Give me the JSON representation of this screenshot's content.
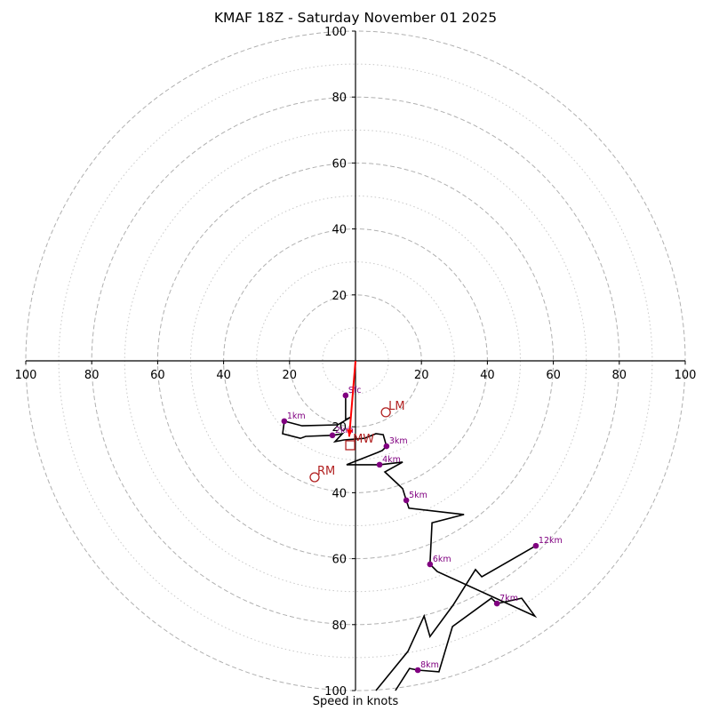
{
  "chart_data": {
    "type": "line",
    "subtype": "hodograph",
    "title": "KMAF 18Z - Saturday November 01 2025",
    "xlabel": "Speed in knots",
    "ylabel": "",
    "axis_range_kt": [
      -100,
      100
    ],
    "ring_major_kt": [
      20,
      40,
      60,
      80,
      100
    ],
    "ring_minor_kt": [
      10,
      30,
      50,
      70,
      90
    ],
    "x_tick_labels": [
      "100",
      "80",
      "60",
      "40",
      "20",
      "20",
      "40",
      "60",
      "80",
      "100"
    ],
    "x_tick_values": [
      -100,
      -80,
      -60,
      -40,
      -20,
      20,
      40,
      60,
      80,
      100
    ],
    "y_tick_labels": [
      "100",
      "80",
      "60",
      "40",
      "20",
      "20",
      "40",
      "60",
      "80",
      "100"
    ],
    "y_tick_values": [
      100,
      80,
      60,
      40,
      20,
      -20,
      -40,
      -60,
      -80,
      -100
    ],
    "grid": true,
    "colors": {
      "hodograph": "#000000",
      "height_markers": "#800080",
      "storm_motion": "#b22222",
      "mean_wind_arrow": "#ff0000",
      "ring_major": "#b0b0b0",
      "ring_minor": "#c8c8c8"
    },
    "hodograph_segments": [
      [
        [
          -3.0,
          -10.5
        ],
        [
          -3.0,
          -17.8
        ],
        [
          -1.3,
          -17.0
        ],
        [
          -5.4,
          -19.4
        ],
        [
          -16.2,
          -19.7
        ],
        [
          -21.6,
          -18.3
        ],
        [
          -22.1,
          -22.1
        ],
        [
          -16.7,
          -23.5
        ],
        [
          -15.1,
          -22.9
        ],
        [
          -7.0,
          -22.6
        ],
        [
          -4.0,
          -22.1
        ],
        [
          -6.2,
          -24.5
        ],
        [
          -3.5,
          -24.0
        ],
        [
          2.7,
          -23.5
        ],
        [
          6.2,
          -22.1
        ],
        [
          8.4,
          -22.4
        ],
        [
          9.4,
          -25.9
        ],
        [
          8.1,
          -27.2
        ],
        [
          6.7,
          -27.8
        ],
        [
          -2.7,
          -31.5
        ],
        [
          7.3,
          -31.5
        ],
        [
          14.3,
          -30.7
        ],
        [
          8.9,
          -33.7
        ],
        [
          13.5,
          -38.0
        ],
        [
          14.3,
          -38.8
        ],
        [
          15.4,
          -42.3
        ],
        [
          16.2,
          -44.7
        ],
        [
          32.9,
          -46.6
        ],
        [
          23.2,
          -49.1
        ],
        [
          22.6,
          -61.7
        ],
        [
          24.8,
          -63.9
        ],
        [
          54.4,
          -77.4
        ],
        [
          50.4,
          -72.0
        ],
        [
          42.9,
          -73.6
        ],
        [
          41.2,
          -72.0
        ],
        [
          29.4,
          -80.6
        ],
        [
          25.3,
          -94.3
        ],
        [
          18.9,
          -93.8
        ],
        [
          16.4,
          -93.3
        ],
        [
          12.1,
          -100.0
        ]
      ],
      [
        [
          6.2,
          -100.0
        ],
        [
          15.9,
          -88.1
        ],
        [
          20.8,
          -77.4
        ],
        [
          22.6,
          -83.6
        ],
        [
          29.6,
          -74.1
        ],
        [
          36.4,
          -63.3
        ],
        [
          38.3,
          -65.5
        ],
        [
          54.7,
          -56.1
        ]
      ]
    ],
    "height_markers": [
      {
        "label": "Sfc",
        "u": -3.0,
        "v": -10.5
      },
      {
        "label": "1km",
        "u": -21.6,
        "v": -18.3
      },
      {
        "label": "2km",
        "u": -7.0,
        "v": -22.6
      },
      {
        "label": "3km",
        "u": 9.4,
        "v": -25.9
      },
      {
        "label": "4km",
        "u": 7.3,
        "v": -31.5
      },
      {
        "label": "5km",
        "u": 15.4,
        "v": -42.3
      },
      {
        "label": "6km",
        "u": 22.6,
        "v": -61.7
      },
      {
        "label": "7km",
        "u": 42.9,
        "v": -73.6
      },
      {
        "label": "8km",
        "u": 18.9,
        "v": -93.8
      },
      {
        "label": "12km",
        "u": 54.7,
        "v": -56.1
      }
    ],
    "storm_motions": [
      {
        "label": "LM",
        "marker": "circle",
        "u": 9.2,
        "v": -15.6
      },
      {
        "label": "RM",
        "marker": "circle",
        "u": -12.4,
        "v": -35.3
      },
      {
        "label": "MW",
        "marker": "square",
        "u": -1.6,
        "v": -25.6
      }
    ],
    "mean_wind_arrow": {
      "from": [
        0,
        0
      ],
      "to": [
        -1.9,
        -23.0
      ]
    }
  }
}
